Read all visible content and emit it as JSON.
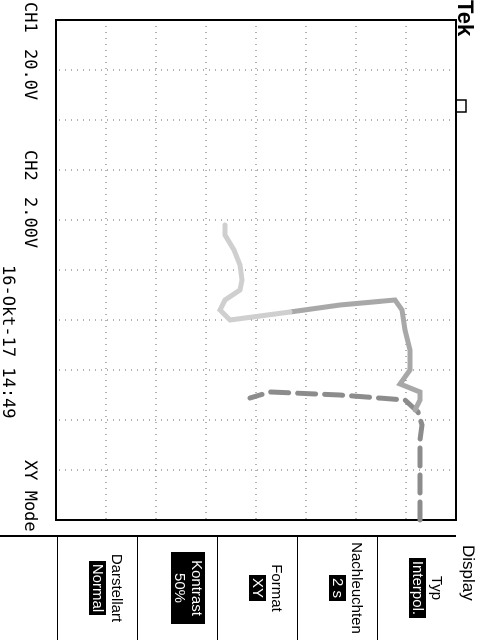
{
  "brand": "Tek",
  "trigger_icon": "trigger-waveform-icon",
  "channels": [
    {
      "label": "CH1",
      "scale": "20.0V"
    },
    {
      "label": "CH2",
      "scale": "2.00V"
    }
  ],
  "datetime": "16-Okt-17 14:49",
  "mode": "XY Mode",
  "menu": {
    "title": "Display",
    "items": [
      {
        "label": "Typ",
        "value": "Interpol."
      },
      {
        "label": "Nachleuchten",
        "value": "2 s"
      },
      {
        "label": "Format",
        "value": "XY"
      },
      {
        "label": "Kontrast",
        "value": "50%"
      },
      {
        "label": "Darstellart",
        "value": "Normal"
      }
    ]
  },
  "colors": {
    "trace": "#8c8c8c",
    "trace_light": "#cfcfcf",
    "grid": "#666666"
  }
}
